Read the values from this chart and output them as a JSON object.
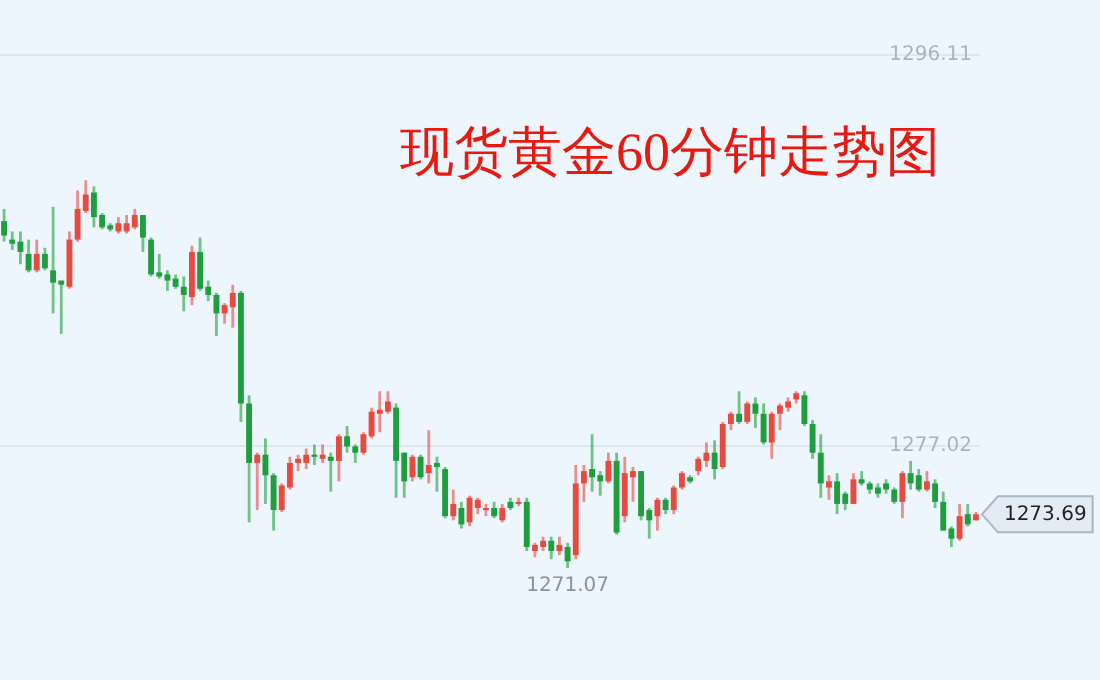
{
  "chart_data": {
    "type": "candlestick",
    "title": "现货黄金60分钟走势图",
    "categories": [
      null,
      null,
      null,
      null,
      null,
      null,
      null,
      null,
      null,
      null,
      null,
      null,
      null,
      null,
      null,
      null,
      null,
      null,
      null,
      null,
      null,
      null,
      null,
      null,
      null,
      null,
      null,
      null,
      null,
      null,
      null,
      null,
      null,
      null,
      null,
      null,
      null,
      null,
      null,
      null,
      null,
      null,
      null,
      null,
      null,
      null,
      null,
      null,
      null,
      null,
      null,
      null,
      null,
      null,
      null,
      null,
      null,
      null,
      null,
      null,
      null,
      null,
      null,
      null,
      null,
      null,
      null,
      null,
      null,
      null,
      null,
      null,
      null,
      null,
      null,
      null,
      null,
      null,
      null,
      null,
      null,
      null,
      null,
      null,
      null,
      null,
      null,
      null,
      null,
      null,
      null,
      null,
      null,
      null,
      null,
      null,
      null,
      null,
      null,
      null,
      null,
      null,
      null,
      null,
      null,
      null,
      null,
      null,
      null,
      null,
      null,
      null,
      null,
      null,
      null,
      null,
      null,
      null,
      null,
      null
    ],
    "ohlc": [
      [
        1288.0,
        1288.6,
        1287.0,
        1287.3
      ],
      [
        1287.1,
        1287.5,
        1286.6,
        1286.9
      ],
      [
        1287.0,
        1287.5,
        1285.9,
        1286.5
      ],
      [
        1286.4,
        1287.1,
        1285.5,
        1285.6
      ],
      [
        1285.6,
        1287.1,
        1285.5,
        1286.4
      ],
      [
        1286.4,
        1286.7,
        1285.6,
        1285.7
      ],
      [
        1285.6,
        1288.7,
        1283.5,
        1285.0
      ],
      [
        1285.1,
        1285.1,
        1282.5,
        1284.9
      ],
      [
        1284.8,
        1287.5,
        1284.7,
        1287.1
      ],
      [
        1287.1,
        1289.5,
        1287.0,
        1288.6
      ],
      [
        1288.5,
        1290.0,
        1288.4,
        1289.3
      ],
      [
        1289.4,
        1289.7,
        1287.7,
        1288.2
      ],
      [
        1288.3,
        1288.4,
        1287.6,
        1287.7
      ],
      [
        1287.8,
        1287.9,
        1287.5,
        1287.6
      ],
      [
        1287.5,
        1288.2,
        1287.4,
        1287.9
      ],
      [
        1287.5,
        1288.3,
        1287.4,
        1287.9
      ],
      [
        1287.7,
        1288.6,
        1287.6,
        1288.3
      ],
      [
        1288.3,
        1288.3,
        1286.5,
        1287.2
      ],
      [
        1287.1,
        1287.2,
        1285.3,
        1285.4
      ],
      [
        1285.5,
        1286.4,
        1285.2,
        1285.3
      ],
      [
        1285.4,
        1285.6,
        1284.6,
        1285.1
      ],
      [
        1285.2,
        1285.4,
        1284.7,
        1284.8
      ],
      [
        1284.8,
        1285.3,
        1283.6,
        1284.4
      ],
      [
        1284.3,
        1286.8,
        1283.9,
        1286.5
      ],
      [
        1286.5,
        1287.2,
        1284.6,
        1284.7
      ],
      [
        1284.8,
        1285.1,
        1284.1,
        1284.4
      ],
      [
        1284.4,
        1284.5,
        1282.4,
        1283.5
      ],
      [
        1283.5,
        1284.0,
        1283.0,
        1283.9
      ],
      [
        1283.8,
        1284.9,
        1282.8,
        1284.5
      ],
      [
        1284.5,
        1284.6,
        1278.2,
        1279.1
      ],
      [
        1279.1,
        1279.5,
        1273.3,
        1276.2
      ],
      [
        1276.2,
        1276.7,
        1273.9,
        1276.6
      ],
      [
        1276.6,
        1277.4,
        1274.2,
        1275.6
      ],
      [
        1275.6,
        1275.7,
        1272.9,
        1273.9
      ],
      [
        1273.9,
        1275.2,
        1273.8,
        1275.1
      ],
      [
        1275.0,
        1276.5,
        1274.9,
        1276.2
      ],
      [
        1276.2,
        1276.6,
        1275.8,
        1276.4
      ],
      [
        1276.2,
        1276.9,
        1275.9,
        1276.6
      ],
      [
        1276.6,
        1277.1,
        1276.1,
        1276.5
      ],
      [
        1276.4,
        1277.1,
        1276.2,
        1276.6
      ],
      [
        1276.5,
        1276.7,
        1274.8,
        1276.3
      ],
      [
        1276.3,
        1277.6,
        1275.3,
        1277.5
      ],
      [
        1277.5,
        1278.0,
        1276.7,
        1277.0
      ],
      [
        1277.0,
        1277.1,
        1276.2,
        1276.7
      ],
      [
        1276.7,
        1277.7,
        1276.6,
        1277.6
      ],
      [
        1277.5,
        1278.9,
        1277.4,
        1278.7
      ],
      [
        1278.6,
        1279.7,
        1277.7,
        1278.8
      ],
      [
        1278.7,
        1279.7,
        1278.6,
        1279.2
      ],
      [
        1278.9,
        1279.1,
        1274.5,
        1276.3
      ],
      [
        1276.7,
        1276.7,
        1274.5,
        1275.3
      ],
      [
        1275.5,
        1276.6,
        1275.3,
        1276.5
      ],
      [
        1276.5,
        1276.6,
        1275.4,
        1275.5
      ],
      [
        1275.7,
        1277.8,
        1275.2,
        1276.1
      ],
      [
        1276.2,
        1276.5,
        1274.8,
        1276.0
      ],
      [
        1275.9,
        1276.0,
        1273.5,
        1273.6
      ],
      [
        1273.6,
        1274.9,
        1273.4,
        1274.2
      ],
      [
        1274.0,
        1274.3,
        1273.0,
        1273.2
      ],
      [
        1273.3,
        1274.6,
        1273.1,
        1274.5
      ],
      [
        1274.0,
        1274.5,
        1273.7,
        1274.4
      ],
      [
        1273.9,
        1274.2,
        1273.6,
        1274.0
      ],
      [
        1274.0,
        1274.3,
        1273.5,
        1273.6
      ],
      [
        1273.4,
        1274.2,
        1273.3,
        1274.0
      ],
      [
        1274.3,
        1274.5,
        1273.9,
        1274.0
      ],
      [
        1274.2,
        1274.5,
        1274.1,
        1274.3
      ],
      [
        1274.3,
        1274.5,
        1271.9,
        1272.1
      ],
      [
        1271.9,
        1272.3,
        1271.6,
        1272.2
      ],
      [
        1272.1,
        1272.6,
        1271.9,
        1272.4
      ],
      [
        1272.4,
        1272.6,
        1271.5,
        1271.9
      ],
      [
        1271.9,
        1272.6,
        1271.7,
        1272.2
      ],
      [
        1272.1,
        1272.3,
        1271.07,
        1271.4
      ],
      [
        1271.7,
        1276.1,
        1271.5,
        1275.2
      ],
      [
        1275.2,
        1276.1,
        1274.3,
        1275.8
      ],
      [
        1275.9,
        1277.6,
        1274.8,
        1275.5
      ],
      [
        1275.6,
        1275.8,
        1274.6,
        1275.3
      ],
      [
        1275.3,
        1276.7,
        1275.2,
        1276.3
      ],
      [
        1276.3,
        1276.7,
        1272.7,
        1272.8
      ],
      [
        1273.6,
        1276.5,
        1273.3,
        1275.7
      ],
      [
        1275.5,
        1276.0,
        1274.3,
        1275.8
      ],
      [
        1275.8,
        1275.8,
        1273.4,
        1273.6
      ],
      [
        1273.9,
        1274.0,
        1272.5,
        1273.4
      ],
      [
        1273.6,
        1274.5,
        1272.9,
        1274.4
      ],
      [
        1274.4,
        1274.5,
        1273.7,
        1273.9
      ],
      [
        1273.9,
        1275.1,
        1273.7,
        1275.0
      ],
      [
        1275.0,
        1275.8,
        1274.9,
        1275.7
      ],
      [
        1275.5,
        1275.6,
        1275.2,
        1275.3
      ],
      [
        1275.8,
        1276.5,
        1275.6,
        1276.4
      ],
      [
        1276.3,
        1277.2,
        1276.0,
        1276.7
      ],
      [
        1276.7,
        1277.3,
        1275.4,
        1275.9
      ],
      [
        1276.0,
        1278.2,
        1275.9,
        1278.1
      ],
      [
        1278.1,
        1278.7,
        1277.8,
        1278.6
      ],
      [
        1278.6,
        1279.7,
        1278.1,
        1278.2
      ],
      [
        1278.2,
        1279.2,
        1278.1,
        1279.1
      ],
      [
        1279.1,
        1279.4,
        1277.9,
        1278.6
      ],
      [
        1278.6,
        1279.1,
        1277.1,
        1277.2
      ],
      [
        1277.2,
        1278.7,
        1276.4,
        1278.6
      ],
      [
        1278.6,
        1279.1,
        1277.8,
        1279.0
      ],
      [
        1278.9,
        1279.4,
        1278.7,
        1279.2
      ],
      [
        1279.3,
        1279.7,
        1279.1,
        1279.6
      ],
      [
        1279.5,
        1279.7,
        1278.0,
        1278.1
      ],
      [
        1278.1,
        1278.3,
        1276.4,
        1276.7
      ],
      [
        1276.7,
        1277.6,
        1274.5,
        1275.2
      ],
      [
        1275.0,
        1275.6,
        1274.4,
        1275.3
      ],
      [
        1275.3,
        1275.7,
        1273.7,
        1274.2
      ],
      [
        1274.7,
        1274.8,
        1273.9,
        1274.2
      ],
      [
        1274.2,
        1275.7,
        1274.2,
        1275.4
      ],
      [
        1275.4,
        1275.8,
        1275.1,
        1275.2
      ],
      [
        1275.2,
        1275.3,
        1274.7,
        1274.9
      ],
      [
        1275.0,
        1275.2,
        1274.5,
        1274.7
      ],
      [
        1275.2,
        1275.4,
        1274.7,
        1274.9
      ],
      [
        1274.9,
        1275.0,
        1274.2,
        1274.3
      ],
      [
        1274.3,
        1275.8,
        1273.5,
        1275.7
      ],
      [
        1275.7,
        1276.3,
        1274.9,
        1275.2
      ],
      [
        1275.6,
        1275.9,
        1274.8,
        1274.9
      ],
      [
        1274.9,
        1275.8,
        1274.8,
        1275.3
      ],
      [
        1275.2,
        1275.4,
        1274.0,
        1274.3
      ],
      [
        1274.3,
        1274.8,
        1272.9,
        1272.9
      ],
      [
        1273.0,
        1273.1,
        1272.1,
        1272.5
      ],
      [
        1272.5,
        1274.2,
        1272.4,
        1273.6
      ],
      [
        1273.7,
        1274.2,
        1273.1,
        1273.2
      ],
      [
        1273.4,
        1273.8,
        1273.4,
        1273.69
      ]
    ],
    "colors": [
      "#1e9e3c",
      "#1e9e3c",
      "#1e9e3c",
      "#1e9e3c",
      "#e84a3f",
      "#1e9e3c",
      "#1e9e3c",
      "#1e9e3c",
      "#e84a3f",
      "#e84a3f",
      "#e84a3f",
      "#1e9e3c",
      "#1e9e3c",
      "#1e9e3c",
      "#e84a3f",
      "#e84a3f",
      "#e84a3f",
      "#1e9e3c",
      "#1e9e3c",
      "#1e9e3c",
      "#1e9e3c",
      "#1e9e3c",
      "#1e9e3c",
      "#e84a3f",
      "#1e9e3c",
      "#1e9e3c",
      "#1e9e3c",
      "#e84a3f",
      "#e84a3f",
      "#1e9e3c",
      "#1e9e3c",
      "#e84a3f",
      "#1e9e3c",
      "#1e9e3c",
      "#e84a3f",
      "#e84a3f",
      "#e84a3f",
      "#e84a3f",
      "#1e9e3c",
      "#e84a3f",
      "#1e9e3c",
      "#e84a3f",
      "#1e9e3c",
      "#1e9e3c",
      "#e84a3f",
      "#e84a3f",
      "#e84a3f",
      "#e84a3f",
      "#1e9e3c",
      "#1e9e3c",
      "#e84a3f",
      "#1e9e3c",
      "#e84a3f",
      "#1e9e3c",
      "#1e9e3c",
      "#e84a3f",
      "#1e9e3c",
      "#e84a3f",
      "#e84a3f",
      "#e84a3f",
      "#1e9e3c",
      "#e84a3f",
      "#1e9e3c",
      "#e84a3f",
      "#1e9e3c",
      "#e84a3f",
      "#e84a3f",
      "#1e9e3c",
      "#e84a3f",
      "#1e9e3c",
      "#e84a3f",
      "#e84a3f",
      "#1e9e3c",
      "#1e9e3c",
      "#e84a3f",
      "#1e9e3c",
      "#e84a3f",
      "#e84a3f",
      "#1e9e3c",
      "#1e9e3c",
      "#e84a3f",
      "#1e9e3c",
      "#e84a3f",
      "#e84a3f",
      "#1e9e3c",
      "#e84a3f",
      "#e84a3f",
      "#1e9e3c",
      "#e84a3f",
      "#e84a3f",
      "#1e9e3c",
      "#e84a3f",
      "#1e9e3c",
      "#1e9e3c",
      "#e84a3f",
      "#e84a3f",
      "#e84a3f",
      "#e84a3f",
      "#1e9e3c",
      "#1e9e3c",
      "#1e9e3c",
      "#e84a3f",
      "#1e9e3c",
      "#1e9e3c",
      "#e84a3f",
      "#1e9e3c",
      "#1e9e3c",
      "#1e9e3c",
      "#1e9e3c",
      "#1e9e3c",
      "#e84a3f",
      "#1e9e3c",
      "#1e9e3c",
      "#e84a3f",
      "#1e9e3c",
      "#1e9e3c",
      "#1e9e3c",
      "#e84a3f",
      "#1e9e3c",
      "#e84a3f"
    ],
    "ylim": [
      1265.8,
      1298.6
    ],
    "yticks": [
      1296.11,
      1277.02
    ],
    "grid": "y",
    "tick_labels": "y",
    "annotations": [
      {
        "text": "1271.07",
        "y": 1271.07
      },
      "1273.69"
    ]
  }
}
